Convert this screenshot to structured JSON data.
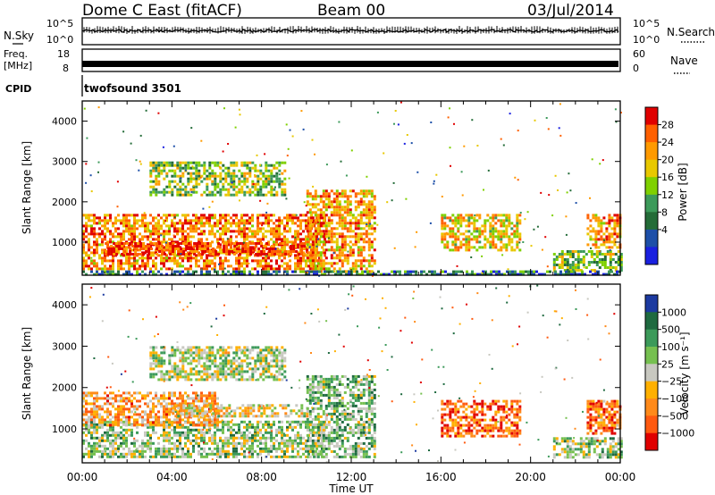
{
  "header": {
    "station": "Dome C East (fitACF)",
    "beam": "Beam 00",
    "date": "03/Jul/2014"
  },
  "status": {
    "nsky_label": "N.Sky",
    "nsearch_label": "N.Search",
    "freq_label_line1": "Freq.",
    "freq_label_line2": "[MHz]",
    "nave_label": "Nave",
    "cpid_label": "CPID",
    "cpid_value": "twofsound 3501",
    "nsky_ticks": [
      "10^5",
      "10^0"
    ],
    "nsearch_ticks": [
      "10^5",
      "10^0"
    ],
    "freq_ticks": [
      "18",
      "8"
    ],
    "nave_ticks": [
      "60",
      "0"
    ]
  },
  "chart_data": [
    {
      "type": "heatmap",
      "name": "power",
      "xlabel": "",
      "ylabel": "Slant Range [km]",
      "x_ticks": [
        "00:00",
        "04:00",
        "08:00",
        "12:00",
        "16:00",
        "20:00",
        "00:00"
      ],
      "x_range_hours": [
        0,
        24
      ],
      "y_ticks": [
        1000,
        2000,
        3000,
        4000
      ],
      "ylim": [
        180,
        4500
      ],
      "colorbar": {
        "label": "Power [dB]",
        "ticks": [
          "28",
          "24",
          "20",
          "16",
          "12",
          "8",
          "4"
        ],
        "colors": [
          "#e00000",
          "#ff6000",
          "#ff9a00",
          "#e8c800",
          "#7fd000",
          "#3c9a5a",
          "#246c38",
          "#1d4fa8",
          "#1a20e0"
        ]
      },
      "regions": [
        {
          "t0": 0.0,
          "t1": 10.8,
          "r0": 350,
          "r1": 1700,
          "level": 0.8
        },
        {
          "t0": 1.0,
          "t1": 10.0,
          "r0": 700,
          "r1": 1000,
          "level": 0.95
        },
        {
          "t0": 10.0,
          "t1": 13.0,
          "r0": 300,
          "r1": 2300,
          "level": 0.75
        },
        {
          "t0": 3.0,
          "t1": 9.0,
          "r0": 2200,
          "r1": 3000,
          "level": 0.5
        },
        {
          "t0": 16.0,
          "t1": 19.5,
          "r0": 800,
          "r1": 1700,
          "level": 0.65
        },
        {
          "t0": 21.0,
          "t1": 24.0,
          "r0": 300,
          "r1": 800,
          "level": 0.45
        },
        {
          "t0": 22.5,
          "t1": 24.0,
          "r0": 900,
          "r1": 1700,
          "level": 0.75
        },
        {
          "t0": 0.0,
          "t1": 24.0,
          "r0": 180,
          "r1": 300,
          "level": 0.25
        }
      ]
    },
    {
      "type": "heatmap",
      "name": "velocity",
      "xlabel": "Time UT",
      "ylabel": "Slant Range [km]",
      "x_ticks": [
        "00:00",
        "04:00",
        "08:00",
        "12:00",
        "16:00",
        "20:00",
        "00:00"
      ],
      "x_range_hours": [
        0,
        24
      ],
      "y_ticks": [
        1000,
        2000,
        3000,
        4000
      ],
      "ylim": [
        180,
        4500
      ],
      "colorbar": {
        "label": "Velocity [m s⁻¹]",
        "ticks": [
          "1000",
          "500",
          "100",
          "25",
          "−25",
          "−100",
          "−500",
          "−1000"
        ],
        "colors": [
          "#1c3aa0",
          "#1f6a40",
          "#3c9a5a",
          "#76c050",
          "#c8c8c0",
          "#ffb000",
          "#ff8a1a",
          "#ff5a10",
          "#e00000"
        ]
      },
      "regions": [
        {
          "t0": 0.0,
          "t1": 10.8,
          "r0": 350,
          "r1": 1200,
          "level": 0.6
        },
        {
          "t0": 0.0,
          "t1": 6.0,
          "r0": 1100,
          "r1": 1900,
          "level": 0.3
        },
        {
          "t0": 4.0,
          "t1": 10.0,
          "r0": 1300,
          "r1": 1600,
          "level": 0.45
        },
        {
          "t0": 10.0,
          "t1": 13.0,
          "r0": 300,
          "r1": 2300,
          "level": 0.65
        },
        {
          "t0": 3.0,
          "t1": 9.0,
          "r0": 2200,
          "r1": 3000,
          "level": 0.55
        },
        {
          "t0": 16.0,
          "t1": 19.5,
          "r0": 800,
          "r1": 1700,
          "level": 0.15
        },
        {
          "t0": 21.0,
          "t1": 24.0,
          "r0": 300,
          "r1": 800,
          "level": 0.6
        },
        {
          "t0": 22.5,
          "t1": 24.0,
          "r0": 900,
          "r1": 1700,
          "level": 0.2
        }
      ]
    }
  ]
}
